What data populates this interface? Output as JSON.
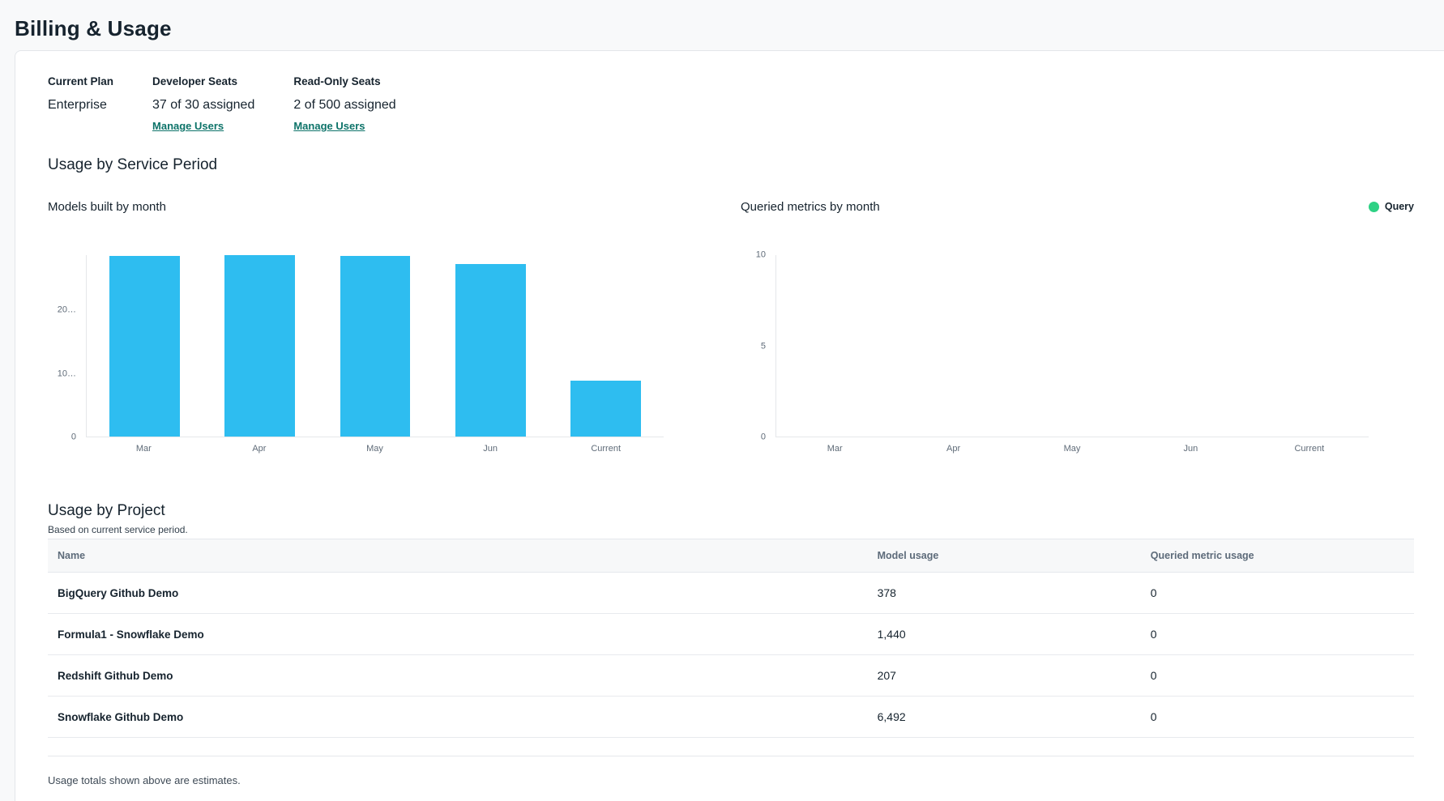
{
  "page": {
    "title": "Billing & Usage"
  },
  "colors": {
    "link_teal": "#0d7369",
    "bar_blue": "#2ebdf0",
    "legend_green": "#2ed184",
    "heading_dark": "#16232e"
  },
  "plan": {
    "current_plan": {
      "label": "Current Plan",
      "value": "Enterprise"
    },
    "developer_seats": {
      "label": "Developer Seats",
      "value": "37 of 30 assigned",
      "link": "Manage Users"
    },
    "readonly_seats": {
      "label": "Read-Only Seats",
      "value": "2 of 500 assigned",
      "link": "Manage Users"
    }
  },
  "usage_by_service_period": {
    "heading": "Usage by Service Period"
  },
  "chart_data": [
    {
      "type": "bar",
      "title": "Models built by month",
      "categories": [
        "Mar",
        "Apr",
        "May",
        "Jun",
        "Current"
      ],
      "values": [
        28600,
        28700,
        28600,
        27300,
        8800
      ],
      "bar_color": "#2ebdf0",
      "ylim": [
        0,
        28700
      ],
      "yticks": [
        {
          "value": 0,
          "label": "0"
        },
        {
          "value": 10000,
          "label": "10…"
        },
        {
          "value": 20000,
          "label": "20…"
        }
      ],
      "xlabel": "",
      "ylabel": "",
      "grid": false,
      "legend_position": "none"
    },
    {
      "type": "bar",
      "title": "Queried metrics by month",
      "categories": [
        "Mar",
        "Apr",
        "May",
        "Jun",
        "Current"
      ],
      "series": [
        {
          "name": "Query",
          "values": [
            0,
            0,
            0,
            0,
            0
          ],
          "color": "#2ed184"
        }
      ],
      "ylim": [
        0,
        10
      ],
      "yticks": [
        {
          "value": 0,
          "label": "0"
        },
        {
          "value": 5,
          "label": "5"
        },
        {
          "value": 10,
          "label": "10"
        }
      ],
      "xlabel": "",
      "ylabel": "",
      "grid": false,
      "legend": {
        "label": "Query",
        "color": "#2ed184",
        "position": "top-right"
      }
    }
  ],
  "usage_by_project": {
    "heading": "Usage by Project",
    "subtitle": "Based on current service period.",
    "columns": [
      "Name",
      "Model usage",
      "Queried metric usage"
    ],
    "rows": [
      {
        "name": "BigQuery Github Demo",
        "model_usage": "378",
        "queried_metric_usage": "0"
      },
      {
        "name": "Formula1 - Snowflake Demo",
        "model_usage": "1,440",
        "queried_metric_usage": "0"
      },
      {
        "name": "Redshift Github Demo",
        "model_usage": "207",
        "queried_metric_usage": "0"
      },
      {
        "name": "Snowflake Github Demo",
        "model_usage": "6,492",
        "queried_metric_usage": "0"
      }
    ],
    "footnote": "Usage totals shown above are estimates."
  }
}
